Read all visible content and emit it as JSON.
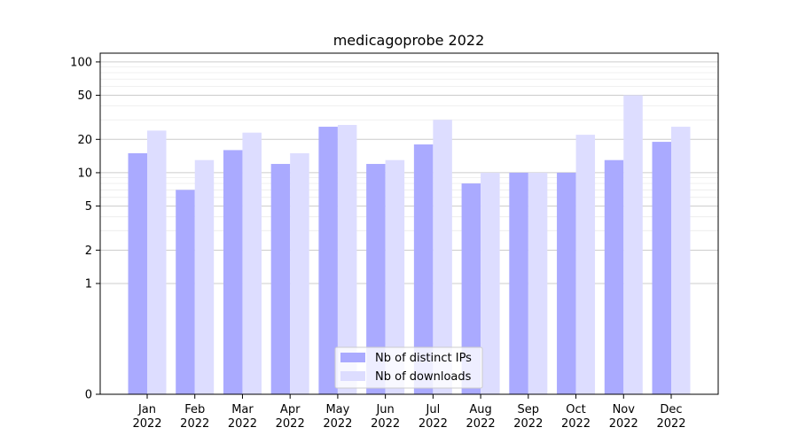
{
  "chart_data": {
    "type": "bar",
    "title": "medicagoprobe 2022",
    "xlabel": "",
    "ylabel": "",
    "categories": [
      [
        "Jan",
        "2022"
      ],
      [
        "Feb",
        "2022"
      ],
      [
        "Mar",
        "2022"
      ],
      [
        "Apr",
        "2022"
      ],
      [
        "May",
        "2022"
      ],
      [
        "Jun",
        "2022"
      ],
      [
        "Jul",
        "2022"
      ],
      [
        "Aug",
        "2022"
      ],
      [
        "Sep",
        "2022"
      ],
      [
        "Oct",
        "2022"
      ],
      [
        "Nov",
        "2022"
      ],
      [
        "Dec",
        "2022"
      ]
    ],
    "series": [
      {
        "name": "Nb of distinct IPs",
        "color": "#aaaaff",
        "values": [
          15,
          7,
          16,
          12,
          26,
          12,
          18,
          8,
          10,
          10,
          13,
          19
        ]
      },
      {
        "name": "Nb of downloads",
        "color": "#ddddff",
        "values": [
          24,
          13,
          23,
          15,
          27,
          13,
          30,
          10,
          10,
          22,
          50,
          26
        ]
      }
    ],
    "yscale": "symlog",
    "ylim": [
      0,
      120
    ],
    "yticks": [
      0,
      1,
      2,
      5,
      10,
      20,
      50,
      100
    ],
    "grid": true,
    "legend_position": "bottom-center"
  }
}
